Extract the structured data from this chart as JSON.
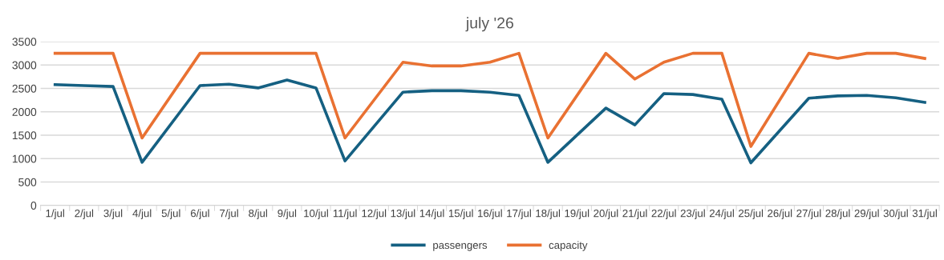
{
  "chart_data": {
    "type": "line",
    "title": "july '26",
    "categories": [
      "1/jul",
      "2/jul",
      "3/jul",
      "4/jul",
      "5/jul",
      "6/jul",
      "7/jul",
      "8/jul",
      "9/jul",
      "10/jul",
      "11/jul",
      "12/jul",
      "13/jul",
      "14/jul",
      "15/jul",
      "16/jul",
      "17/jul",
      "18/jul",
      "19/jul",
      "20/jul",
      "21/jul",
      "22/jul",
      "23/jul",
      "24/jul",
      "25/jul",
      "26/jul",
      "27/jul",
      "28/jul",
      "29/jul",
      "30/jul",
      "31/jul"
    ],
    "series": [
      {
        "name": "passengers",
        "color": "#156082",
        "values": [
          2580,
          2560,
          2540,
          920,
          null,
          2560,
          2590,
          2510,
          2680,
          2510,
          950,
          null,
          2420,
          2450,
          2450,
          2420,
          2350,
          920,
          null,
          2080,
          1720,
          2390,
          2370,
          2270,
          910,
          null,
          2290,
          2340,
          2350,
          2300,
          2200
        ]
      },
      {
        "name": "capacity",
        "color": "#e97132",
        "values": [
          3250,
          3250,
          3250,
          1440,
          null,
          3250,
          3250,
          3250,
          3250,
          3250,
          1440,
          null,
          3060,
          2980,
          2980,
          3060,
          3250,
          1440,
          null,
          3250,
          2700,
          3060,
          3250,
          3250,
          1260,
          null,
          3250,
          3140,
          3250,
          3250,
          3140
        ]
      }
    ],
    "ylim": [
      0,
      3500
    ],
    "yticks": [
      0,
      500,
      1000,
      1500,
      2000,
      2500,
      3000,
      3500
    ],
    "grid": "y",
    "legend": "bottom",
    "marker": "none",
    "line_style": "solid"
  }
}
